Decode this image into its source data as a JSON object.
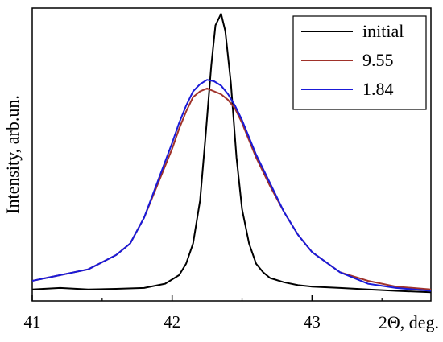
{
  "chart_data": {
    "type": "line",
    "title": "",
    "xlabel": "2Θ, deg.",
    "ylabel": "Intensity, arb.un.",
    "xlim": [
      41,
      43.85
    ],
    "ylim": [
      0,
      1.02
    ],
    "xticks": [
      41,
      42,
      43
    ],
    "xtick_labels": [
      "41",
      "42",
      "43"
    ],
    "yticks_visible": false,
    "grid": false,
    "legend": "top-right",
    "series": [
      {
        "name": "initial",
        "color": "#000000",
        "x": [
          41.0,
          41.2,
          41.4,
          41.6,
          41.8,
          41.95,
          42.05,
          42.1,
          42.15,
          42.2,
          42.24,
          42.28,
          42.31,
          42.35,
          42.38,
          42.42,
          42.46,
          42.5,
          42.55,
          42.6,
          42.65,
          42.7,
          42.8,
          42.9,
          43.0,
          43.2,
          43.4,
          43.6,
          43.85
        ],
        "y": [
          0.04,
          0.045,
          0.04,
          0.042,
          0.045,
          0.06,
          0.09,
          0.13,
          0.2,
          0.35,
          0.58,
          0.82,
          0.96,
          1.0,
          0.94,
          0.76,
          0.5,
          0.32,
          0.2,
          0.13,
          0.1,
          0.08,
          0.065,
          0.055,
          0.05,
          0.045,
          0.04,
          0.035,
          0.03
        ]
      },
      {
        "name": "9.55",
        "color": "#a0322a",
        "x": [
          41.0,
          41.2,
          41.4,
          41.6,
          41.7,
          41.8,
          41.9,
          42.0,
          42.05,
          42.1,
          42.15,
          42.2,
          42.25,
          42.3,
          42.35,
          42.4,
          42.45,
          42.5,
          42.55,
          42.6,
          42.7,
          42.8,
          42.9,
          43.0,
          43.2,
          43.4,
          43.6,
          43.85
        ],
        "y": [
          0.07,
          0.09,
          0.11,
          0.16,
          0.2,
          0.29,
          0.41,
          0.53,
          0.6,
          0.66,
          0.71,
          0.73,
          0.74,
          0.73,
          0.72,
          0.7,
          0.67,
          0.62,
          0.56,
          0.5,
          0.4,
          0.31,
          0.23,
          0.17,
          0.1,
          0.07,
          0.05,
          0.04
        ]
      },
      {
        "name": "1.84",
        "color": "#1a1ad8",
        "x": [
          41.0,
          41.2,
          41.4,
          41.6,
          41.7,
          41.8,
          41.9,
          42.0,
          42.05,
          42.1,
          42.15,
          42.2,
          42.25,
          42.3,
          42.35,
          42.4,
          42.45,
          42.5,
          42.55,
          42.6,
          42.7,
          42.8,
          42.9,
          43.0,
          43.2,
          43.4,
          43.6,
          43.85
        ],
        "y": [
          0.07,
          0.09,
          0.11,
          0.16,
          0.2,
          0.29,
          0.42,
          0.55,
          0.62,
          0.68,
          0.73,
          0.755,
          0.77,
          0.765,
          0.75,
          0.72,
          0.68,
          0.63,
          0.57,
          0.51,
          0.41,
          0.31,
          0.23,
          0.17,
          0.1,
          0.06,
          0.045,
          0.035
        ]
      }
    ]
  }
}
